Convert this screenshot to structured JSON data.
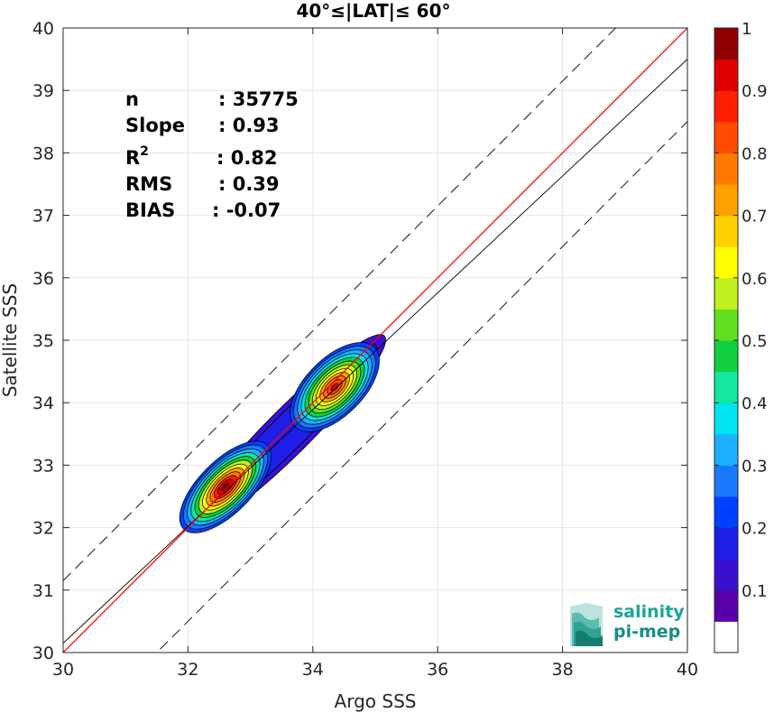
{
  "chart_data": {
    "type": "heatmap",
    "subtype": "filled-contour density scatter",
    "title": "40°≤|LAT|≤ 60°",
    "xlabel": "Argo SSS",
    "ylabel": "Satellite SSS",
    "xlim": [
      30,
      40
    ],
    "ylim": [
      30,
      40
    ],
    "xticks": [
      "30",
      "32",
      "34",
      "36",
      "38",
      "40"
    ],
    "yticks": [
      "30",
      "31",
      "32",
      "33",
      "34",
      "35",
      "36",
      "37",
      "38",
      "39",
      "40"
    ],
    "grid": true,
    "stats": [
      {
        "label": "n",
        "value": ": 35775"
      },
      {
        "label": "Slope",
        "value": ": 0.93"
      },
      {
        "label": "R",
        "sup": "2",
        "value": ": 0.82"
      },
      {
        "label": "RMS",
        "value": ": 0.39"
      },
      {
        "label": "BIAS",
        "value": ": -0.07"
      }
    ],
    "lines": {
      "one_to_one": {
        "color": "#ff0000",
        "slope": 1,
        "intercept": 0
      },
      "regression": {
        "color": "#000000",
        "slope": 0.935,
        "intercept": 2.1
      },
      "offset_upper": {
        "color": "#000000",
        "style": "dashed",
        "slope": 1,
        "intercept": 1.15
      },
      "offset_lower": {
        "color": "#000000",
        "style": "dashed",
        "slope": 1,
        "intercept": -1.5
      }
    },
    "density_peaks": [
      {
        "x": 32.6,
        "y": 32.65,
        "value": 1.0
      },
      {
        "x": 34.35,
        "y": 34.25,
        "value": 0.9
      }
    ],
    "colorbar": {
      "ticks": [
        "0.1",
        "0.2",
        "0.3",
        "0.4",
        "0.5",
        "0.6",
        "0.7",
        "0.8",
        "0.9",
        "1"
      ],
      "range": [
        0,
        1
      ],
      "colors": [
        "#ffffff",
        "#5a00aa",
        "#3a10d0",
        "#1e1ee8",
        "#0040ff",
        "#1a78ff",
        "#1ab0ff",
        "#00e4f0",
        "#10e8a0",
        "#10d040",
        "#60e020",
        "#c0f020",
        "#ffff00",
        "#ffd000",
        "#ffa000",
        "#ff7800",
        "#ff4a00",
        "#ff1e00",
        "#e00000",
        "#900000"
      ]
    }
  },
  "logo": {
    "line1": "salinity",
    "line2": "pi-mep"
  }
}
